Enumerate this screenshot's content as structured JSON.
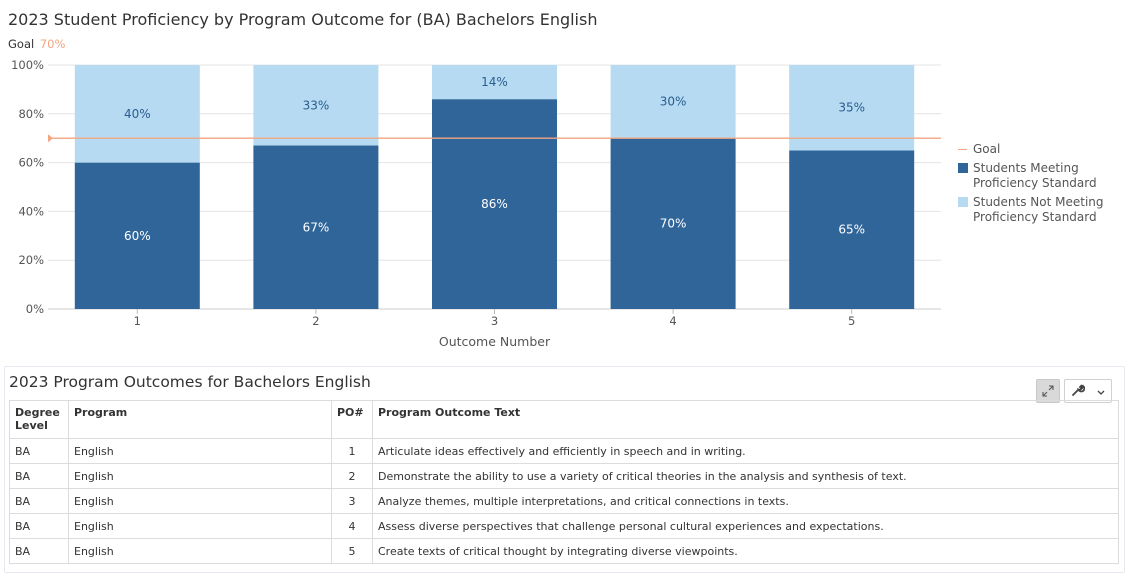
{
  "chart": {
    "title": "2023 Student Proficiency by Program Outcome for (BA) Bachelors English",
    "goal_label": "Goal",
    "goal_value_text": "70%",
    "legend": [
      {
        "label": "Goal",
        "color": "#f4a582",
        "kind": "line"
      },
      {
        "label": "Students Meeting Proficiency Standard",
        "color": "#2f6599",
        "kind": "box"
      },
      {
        "label": "Students Not Meeting Proficiency Standard",
        "color": "#b6daf2",
        "kind": "box"
      }
    ]
  },
  "chart_data": {
    "type": "bar",
    "stacked": true,
    "categories": [
      "1",
      "2",
      "3",
      "4",
      "5"
    ],
    "xlabel": "Outcome Number",
    "ylabel": "",
    "ylim": [
      0,
      100
    ],
    "y_ticks": [
      "0%",
      "20%",
      "40%",
      "60%",
      "80%",
      "100%"
    ],
    "goal": 70,
    "series": [
      {
        "name": "Students Meeting Proficiency Standard",
        "values": [
          60,
          67,
          86,
          70,
          65
        ],
        "labels": [
          "60%",
          "67%",
          "86%",
          "70%",
          "65%"
        ],
        "color": "#2f6599"
      },
      {
        "name": "Students Not Meeting Proficiency Standard",
        "values": [
          40,
          33,
          14,
          30,
          35
        ],
        "labels": [
          "40%",
          "33%",
          "14%",
          "30%",
          "35%"
        ],
        "color": "#b6daf2"
      }
    ],
    "legend_position": "right",
    "grid": true
  },
  "table_panel": {
    "title": "2023 Program Outcomes for Bachelors English",
    "expand_icon": "expand-icon",
    "tools_icon": "wrench-icon",
    "dropdown_icon": "chevron-down-icon",
    "headers": {
      "degree": "Degree Level",
      "program": "Program",
      "po": "PO#",
      "text": "Program Outcome Text"
    },
    "rows": [
      {
        "degree": "BA",
        "program": "English",
        "po": "1",
        "text": "Articulate ideas effectively and efficiently in speech and in writing."
      },
      {
        "degree": "BA",
        "program": "English",
        "po": "2",
        "text": "Demonstrate the ability to use a variety of critical theories in the analysis and synthesis of text."
      },
      {
        "degree": "BA",
        "program": "English",
        "po": "3",
        "text": "Analyze themes, multiple interpretations, and critical connections in texts."
      },
      {
        "degree": "BA",
        "program": "English",
        "po": "4",
        "text": "Assess diverse perspectives that challenge personal cultural experiences and expectations."
      },
      {
        "degree": "BA",
        "program": "English",
        "po": "5",
        "text": "Create texts of critical thought by integrating diverse viewpoints."
      }
    ]
  }
}
